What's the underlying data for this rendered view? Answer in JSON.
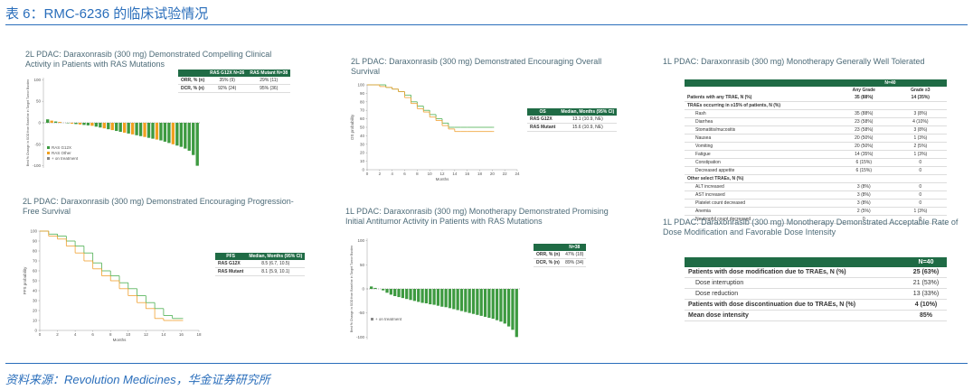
{
  "header": {
    "title": "表 6：RMC-6236 的临床试验情况"
  },
  "footer": {
    "source": "资料来源：Revolution Medicines，华金证券研究所"
  },
  "panels": [
    {
      "title": "2L PDAC: Daraxonrasib (300 mg) Demonstrated Compelling Clinical Activity in Patients with RAS Mutations",
      "chart_data": {
        "type": "waterfall",
        "ylabel": "Best % Change in SOD from Baseline in Target Tumor Burden",
        "ylim": [
          -105,
          105
        ],
        "yticks": [
          100,
          50,
          0,
          -50,
          -100
        ],
        "values": [
          8,
          5,
          3,
          2,
          0,
          -1,
          -2,
          -3,
          -4,
          -5,
          -6,
          -7,
          -9,
          -11,
          -13,
          -15,
          -17,
          -19,
          -21,
          -23,
          -25,
          -27,
          -29,
          -31,
          -33,
          -35,
          -37,
          -39,
          -41,
          -44,
          -47,
          -50,
          -53,
          -56,
          -60,
          -65,
          -75,
          -100
        ],
        "colors": [
          "#3d9a40",
          "#f0a020",
          "#3d9a40",
          "#f0a020",
          "#3d9a40",
          "#3d9a40",
          "#f0a020",
          "#3d9a40",
          "#f0a020",
          "#3d9a40",
          "#3d9a40",
          "#f0a020",
          "#3d9a40",
          "#3d9a40",
          "#f0a020",
          "#3d9a40",
          "#f0a020",
          "#3d9a40",
          "#3d9a40",
          "#f0a020",
          "#3d9a40",
          "#f0a020",
          "#3d9a40",
          "#3d9a40",
          "#f0a020",
          "#3d9a40",
          "#3d9a40",
          "#f0a020",
          "#3d9a40",
          "#3d9a40",
          "#3d9a40",
          "#f0a020",
          "#3d9a40",
          "#3d9a40",
          "#3d9a40",
          "#3d9a40",
          "#3d9a40",
          "#3d9a40"
        ],
        "legend": [
          {
            "label": "RAS G12X",
            "color": "#3d9a40"
          },
          {
            "label": "RAS Other",
            "color": "#f0a020"
          },
          {
            "label": "+ on treatment",
            "color": "#888888"
          }
        ]
      },
      "table": {
        "header": [
          "RAS G12X N=26",
          "RAS Mutant N=38"
        ],
        "rows": [
          [
            "ORR, % (n)",
            "35% (9)",
            "29% (11)"
          ],
          [
            "DCR, % (n)",
            "92% (24)",
            "95% (36)"
          ]
        ]
      }
    },
    {
      "title": "2L PDAC: Daraxonrasib (300 mg) Demonstrated Encouraging Progression-Free Survival",
      "chart_data": {
        "type": "km",
        "ylabel": "PFS probability",
        "xlabel": "Months",
        "xlim": [
          0,
          18
        ],
        "xticks": [
          0,
          2,
          4,
          6,
          8,
          10,
          12,
          14,
          16,
          18
        ],
        "ylim": [
          0,
          100
        ],
        "yticks": [
          0,
          10,
          20,
          30,
          40,
          50,
          60,
          70,
          80,
          90,
          100
        ],
        "x": [
          0,
          1,
          2,
          3,
          4,
          5,
          6,
          7,
          8,
          9,
          10,
          11,
          12,
          13,
          14,
          15,
          16
        ],
        "series": [
          {
            "color": "#4caf50",
            "values": [
              100,
              97,
              95,
              90,
              85,
              78,
              68,
              60,
              55,
              48,
              42,
              35,
              28,
              22,
              15,
              12,
              12
            ]
          },
          {
            "color": "#f0a030",
            "values": [
              100,
              95,
              92,
              85,
              78,
              70,
              62,
              55,
              50,
              42,
              35,
              28,
              22,
              12,
              10,
              10,
              10
            ]
          }
        ]
      },
      "table": {
        "header": [
          "PFS",
          "Median, Months (95% CI)"
        ],
        "rows": [
          [
            "RAS G12X",
            "8.5 (6.7, 10.5)"
          ],
          [
            "RAS Mutant",
            "8.1 (5.9, 10.1)"
          ]
        ]
      }
    },
    {
      "title": "2L PDAC: Daraxonrasib (300 mg) Demonstrated Encouraging Overall Survival",
      "chart_data": {
        "type": "km",
        "ylabel": "OS probability",
        "xlabel": "Months",
        "xlim": [
          0,
          24
        ],
        "xticks": [
          0,
          2,
          4,
          6,
          8,
          10,
          12,
          14,
          16,
          18,
          20,
          22,
          24
        ],
        "ylim": [
          0,
          100
        ],
        "yticks": [
          0,
          10,
          20,
          30,
          40,
          50,
          60,
          70,
          80,
          90,
          100
        ],
        "x": [
          0,
          1,
          2,
          3,
          4,
          5,
          6,
          7,
          8,
          9,
          10,
          11,
          12,
          13,
          14,
          15,
          16,
          18,
          20
        ],
        "series": [
          {
            "color": "#4caf50",
            "values": [
              100,
              100,
              100,
              97,
              95,
              92,
              88,
              80,
              75,
              70,
              65,
              60,
              55,
              50,
              50,
              50,
              50,
              50,
              50
            ]
          },
          {
            "color": "#f0a030",
            "values": [
              100,
              100,
              98,
              97,
              95,
              92,
              85,
              78,
              72,
              68,
              62,
              58,
              52,
              48,
              45,
              45,
              45,
              45,
              45
            ]
          }
        ]
      },
      "table": {
        "header": [
          "OS",
          "Median, Months (95% CI)"
        ],
        "rows": [
          [
            "RAS G12X",
            "13.1 (10.9, NE)"
          ],
          [
            "RAS Mutant",
            "15.6 (10.9, NE)"
          ]
        ]
      }
    },
    {
      "title": "1L PDAC: Daraxonrasib (300 mg) Monotherapy Demonstrated Promising Initial Antitumor Activity in Patients with RAS Mutations",
      "chart_data": {
        "type": "waterfall",
        "ylabel": "Best % Change in SOD from Baseline in Target Tumor Burden",
        "ylim": [
          -105,
          105
        ],
        "yticks": [
          100,
          50,
          0,
          -50,
          -100
        ],
        "values": [
          5,
          2,
          0,
          -3,
          -8,
          -12,
          -15,
          -17,
          -19,
          -21,
          -23,
          -25,
          -27,
          -29,
          -30,
          -32,
          -33,
          -35,
          -37,
          -38,
          -40,
          -42,
          -44,
          -46,
          -48,
          -50,
          -52,
          -54,
          -56,
          -58,
          -60,
          -62,
          -65,
          -68,
          -72,
          -78,
          -85,
          -100
        ],
        "color": "#3d9a40",
        "legend": [
          {
            "label": "+ on treatment",
            "color": "#888888"
          }
        ]
      },
      "table": {
        "header": [
          "N=38"
        ],
        "rows": [
          [
            "ORR, % (n)",
            "47% (18)"
          ],
          [
            "DCR, % (n)",
            "89% (34)"
          ]
        ]
      }
    },
    {
      "title": "1L PDAC: Daraxonrasib (300 mg) Monotherapy Generally Well Tolerated",
      "table": {
        "header": [
          "N=40"
        ],
        "subheader": [
          "Any Grade",
          "Grade ≥3"
        ],
        "rows": [
          {
            "cells": [
              "Patients with any TRAE, N (%)",
              "35 (88%)",
              "14 (35%)"
            ],
            "bold": true
          },
          {
            "cells": [
              "TRAEs occurring in ≥15% of patients, N (%)"
            ],
            "bold": true
          },
          {
            "cells": [
              "Rash",
              "35 (88%)",
              "3 (8%)"
            ]
          },
          {
            "cells": [
              "Diarrhea",
              "23 (58%)",
              "4 (10%)"
            ]
          },
          {
            "cells": [
              "Stomatitis/mucositis",
              "23 (58%)",
              "3 (8%)"
            ]
          },
          {
            "cells": [
              "Nausea",
              "20 (50%)",
              "1 (3%)"
            ]
          },
          {
            "cells": [
              "Vomiting",
              "20 (50%)",
              "2 (5%)"
            ]
          },
          {
            "cells": [
              "Fatigue",
              "14 (35%)",
              "1 (3%)"
            ]
          },
          {
            "cells": [
              "Constipation",
              "6 (15%)",
              "0"
            ]
          },
          {
            "cells": [
              "Decreased appetite",
              "6 (15%)",
              "0"
            ]
          },
          {
            "cells": [
              "Other select TRAEs, N (%)"
            ],
            "bold": true
          },
          {
            "cells": [
              "ALT increased",
              "3 (8%)",
              "0"
            ]
          },
          {
            "cells": [
              "AST increased",
              "3 (8%)",
              "0"
            ]
          },
          {
            "cells": [
              "Platelet count decreased",
              "3 (8%)",
              "0"
            ]
          },
          {
            "cells": [
              "Anemia",
              "2 (5%)",
              "1 (3%)"
            ]
          },
          {
            "cells": [
              "Neutrophil count decreased",
              "0",
              "0"
            ]
          }
        ]
      }
    },
    {
      "title": "1L PDAC: Daraxonrasib (300 mg) Monotherapy Demonstrated Acceptable Rate of Dose Modification and Favorable Dose Intensity",
      "table": {
        "header": [
          "N=40"
        ],
        "rows": [
          {
            "cells": [
              "Patients with dose modification due to TRAEs, N (%)",
              "25 (63%)"
            ],
            "bold": true
          },
          {
            "cells": [
              "Dose interruption",
              "21 (53%)"
            ]
          },
          {
            "cells": [
              "Dose reduction",
              "13 (33%)"
            ]
          },
          {
            "cells": [
              "Patients with dose discontinuation due to TRAEs, N (%)",
              "4 (10%)"
            ],
            "bold": true
          },
          {
            "cells": [
              "Mean dose intensity",
              "85%"
            ],
            "bold": true
          }
        ]
      }
    }
  ]
}
